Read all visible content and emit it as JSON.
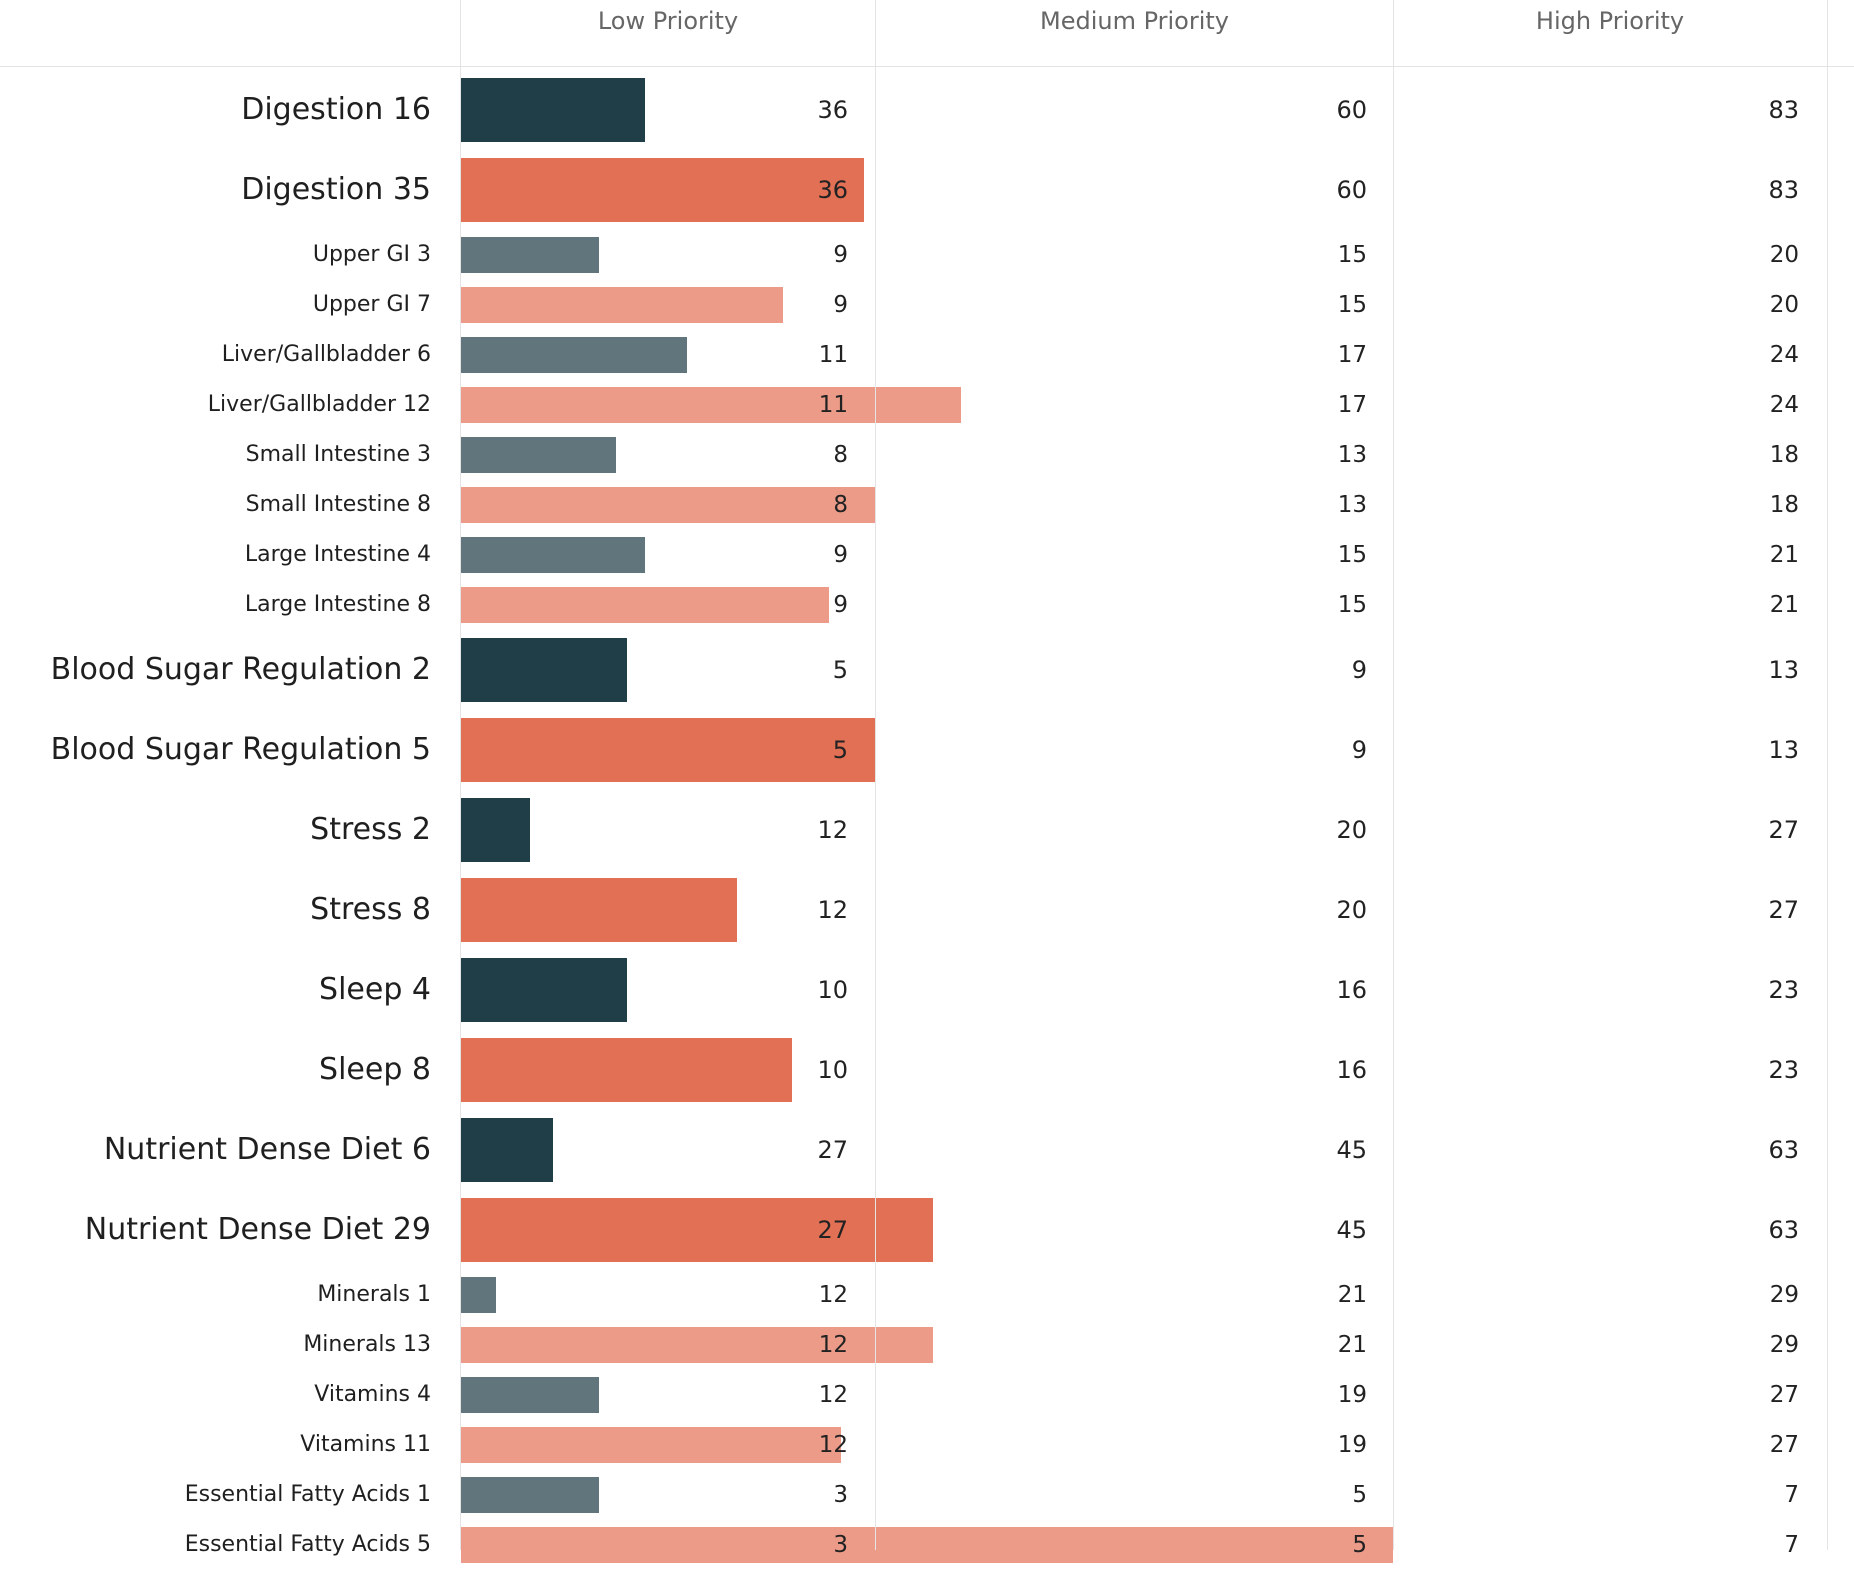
{
  "chart_data": {
    "type": "bar",
    "orientation": "horizontal",
    "columns": [
      "Low Priority",
      "Medium Priority",
      "High Priority"
    ],
    "colors": {
      "parent_current": "#1f3e47",
      "parent_reference": "#e27055",
      "child_current": "#61767c",
      "child_reference": "#eb9b88"
    },
    "rows": [
      {
        "label": "Digestion 16",
        "value": 16,
        "level": "parent",
        "variant": "current",
        "low": 36,
        "medium": 60,
        "high": 83
      },
      {
        "label": "Digestion 35",
        "value": 35,
        "level": "parent",
        "variant": "reference",
        "low": 36,
        "medium": 60,
        "high": 83
      },
      {
        "label": "Upper GI 3",
        "value": 3,
        "level": "child",
        "variant": "current",
        "low": 9,
        "medium": 15,
        "high": 20
      },
      {
        "label": "Upper GI 7",
        "value": 7,
        "level": "child",
        "variant": "reference",
        "low": 9,
        "medium": 15,
        "high": 20
      },
      {
        "label": "Liver/Gallbladder 6",
        "value": 6,
        "level": "child",
        "variant": "current",
        "low": 11,
        "medium": 17,
        "high": 24
      },
      {
        "label": "Liver/Gallbladder 12",
        "value": 12,
        "level": "child",
        "variant": "reference",
        "low": 11,
        "medium": 17,
        "high": 24
      },
      {
        "label": "Small Intestine 3",
        "value": 3,
        "level": "child",
        "variant": "current",
        "low": 8,
        "medium": 13,
        "high": 18
      },
      {
        "label": "Small Intestine 8",
        "value": 8,
        "level": "child",
        "variant": "reference",
        "low": 8,
        "medium": 13,
        "high": 18
      },
      {
        "label": "Large Intestine 4",
        "value": 4,
        "level": "child",
        "variant": "current",
        "low": 9,
        "medium": 15,
        "high": 21
      },
      {
        "label": "Large Intestine 8",
        "value": 8,
        "level": "child",
        "variant": "reference",
        "low": 9,
        "medium": 15,
        "high": 21
      },
      {
        "label": "Blood Sugar Regulation 2",
        "value": 2,
        "level": "parent",
        "variant": "current",
        "low": 5,
        "medium": 9,
        "high": 13
      },
      {
        "label": "Blood Sugar Regulation 5",
        "value": 5,
        "level": "parent",
        "variant": "reference",
        "low": 5,
        "medium": 9,
        "high": 13
      },
      {
        "label": "Stress 2",
        "value": 2,
        "level": "parent",
        "variant": "current",
        "low": 12,
        "medium": 20,
        "high": 27
      },
      {
        "label": "Stress 8",
        "value": 8,
        "level": "parent",
        "variant": "reference",
        "low": 12,
        "medium": 20,
        "high": 27
      },
      {
        "label": "Sleep 4",
        "value": 4,
        "level": "parent",
        "variant": "current",
        "low": 10,
        "medium": 16,
        "high": 23
      },
      {
        "label": "Sleep 8",
        "value": 8,
        "level": "parent",
        "variant": "reference",
        "low": 10,
        "medium": 16,
        "high": 23
      },
      {
        "label": "Nutrient Dense Diet 6",
        "value": 6,
        "level": "parent",
        "variant": "current",
        "low": 27,
        "medium": 45,
        "high": 63
      },
      {
        "label": "Nutrient Dense Diet 29",
        "value": 29,
        "level": "parent",
        "variant": "reference",
        "low": 27,
        "medium": 45,
        "high": 63
      },
      {
        "label": "Minerals 1",
        "value": 1,
        "level": "child",
        "variant": "current",
        "low": 12,
        "medium": 21,
        "high": 29
      },
      {
        "label": "Minerals 13",
        "value": 13,
        "level": "child",
        "variant": "reference",
        "low": 12,
        "medium": 21,
        "high": 29
      },
      {
        "label": "Vitamins 4",
        "value": 4,
        "level": "child",
        "variant": "current",
        "low": 12,
        "medium": 19,
        "high": 27
      },
      {
        "label": "Vitamins 11",
        "value": 11,
        "level": "child",
        "variant": "reference",
        "low": 12,
        "medium": 19,
        "high": 27
      },
      {
        "label": "Essential Fatty Acids 1",
        "value": 1,
        "level": "child",
        "variant": "current",
        "low": 3,
        "medium": 5,
        "high": 7
      },
      {
        "label": "Essential Fatty Acids 5",
        "value": 5,
        "level": "child",
        "variant": "reference",
        "low": 3,
        "medium": 5,
        "high": 7
      }
    ]
  }
}
